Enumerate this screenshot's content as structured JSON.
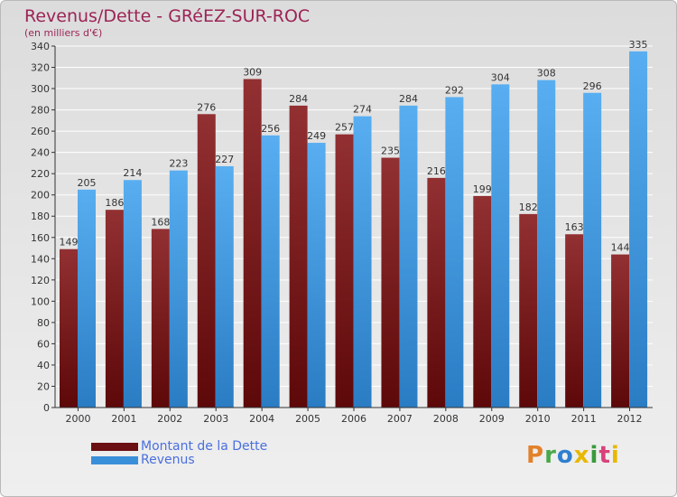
{
  "header": {
    "title": "Revenus/Dette - GRéEZ-SUR-ROC",
    "subtitle": "(en milliers d'€)"
  },
  "legend": {
    "items": [
      {
        "label": "Montant de la Dette",
        "color": "#6b0f12"
      },
      {
        "label": "Revenus",
        "color": "#3a8fd9"
      }
    ]
  },
  "logo": {
    "letters": [
      "P",
      "r",
      "o",
      "x",
      "i",
      "t",
      "i"
    ],
    "colors": [
      "#e3812a",
      "#4aa84a",
      "#2f7fd0",
      "#e8b800",
      "#3a9a3a",
      "#d9417a",
      "#e8b800"
    ]
  },
  "colors": {
    "dette_light": "#923032",
    "dette_dark": "#5d0809",
    "revenus_light": "#58aef0",
    "revenus_dark": "#2a7cc3",
    "grid": "#ffffff",
    "axis": "#333333",
    "text": "#333333"
  },
  "chart_data": {
    "type": "bar",
    "title": "Revenus/Dette - GRéEZ-SUR-ROC",
    "ylabel": "(en milliers d'€)",
    "xlabel": "",
    "categories": [
      "2000",
      "2001",
      "2002",
      "2003",
      "2004",
      "2005",
      "2006",
      "2007",
      "2008",
      "2009",
      "2010",
      "2011",
      "2012"
    ],
    "series": [
      {
        "name": "Montant de la Dette",
        "values": [
          149,
          186,
          168,
          276,
          309,
          284,
          257,
          235,
          216,
          199,
          182,
          163,
          144
        ]
      },
      {
        "name": "Revenus",
        "values": [
          205,
          214,
          223,
          227,
          256,
          249,
          274,
          284,
          292,
          304,
          308,
          296,
          335
        ]
      }
    ],
    "ylim": [
      0,
      340
    ],
    "ytick_step": 20,
    "grid": true,
    "legend_position": "bottom-left"
  }
}
